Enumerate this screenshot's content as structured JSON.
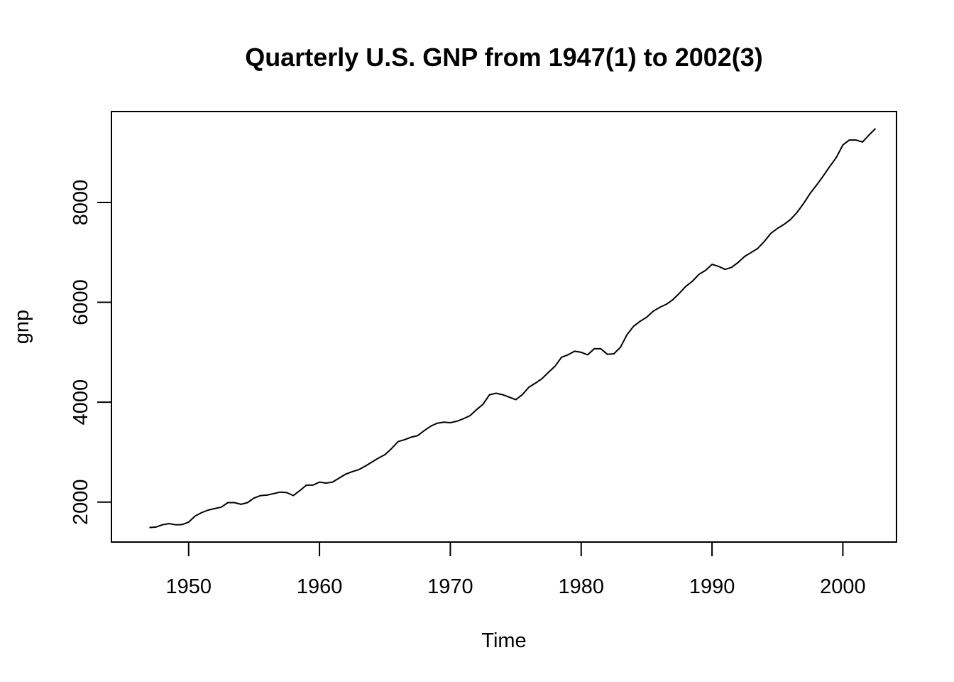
{
  "chart_data": {
    "type": "line",
    "title": "Quarterly U.S. GNP from 1947(1) to 2002(3)",
    "xlabel": "Time",
    "ylabel": "gnp",
    "xlim": [
      1944.1,
      2004.1
    ],
    "ylim": [
      1200,
      9820
    ],
    "x_ticks": [
      1950,
      1960,
      1970,
      1980,
      1990,
      2000
    ],
    "x_tick_labels": [
      "1950",
      "1960",
      "1970",
      "1980",
      "1990",
      "2000"
    ],
    "y_ticks": [
      2000,
      4000,
      6000,
      8000
    ],
    "y_tick_labels": [
      "2000",
      "4000",
      "6000",
      "8000"
    ],
    "grid": false,
    "legend": "none",
    "line_color": "#000000",
    "series": [
      {
        "x": [
          1947.0,
          1947.5,
          1948.0,
          1948.5,
          1949.0,
          1949.5,
          1950.0,
          1950.5,
          1951.0,
          1951.5,
          1952.0,
          1952.5,
          1953.0,
          1953.5,
          1954.0,
          1954.5,
          1955.0,
          1955.5,
          1956.0,
          1956.5,
          1957.0,
          1957.5,
          1958.0,
          1958.5,
          1959.0,
          1959.5,
          1960.0,
          1960.5,
          1961.0,
          1961.5,
          1962.0,
          1962.5,
          1963.0,
          1963.5,
          1964.0,
          1964.5,
          1965.0,
          1965.5,
          1966.0,
          1966.5,
          1967.0,
          1967.5,
          1968.0,
          1968.5,
          1969.0,
          1969.5,
          1970.0,
          1970.5,
          1971.0,
          1971.5,
          1972.0,
          1972.5,
          1973.0,
          1973.5,
          1974.0,
          1974.5,
          1975.0,
          1975.5,
          1976.0,
          1976.5,
          1977.0,
          1977.5,
          1978.0,
          1978.5,
          1979.0,
          1979.5,
          1980.0,
          1980.5,
          1981.0,
          1981.5,
          1982.0,
          1982.5,
          1983.0,
          1983.5,
          1984.0,
          1984.5,
          1985.0,
          1985.5,
          1986.0,
          1986.5,
          1987.0,
          1987.5,
          1988.0,
          1988.5,
          1989.0,
          1989.5,
          1990.0,
          1990.5,
          1991.0,
          1991.5,
          1992.0,
          1992.5,
          1993.0,
          1993.5,
          1994.0,
          1994.5,
          1995.0,
          1995.5,
          1996.0,
          1996.5,
          1997.0,
          1997.5,
          1998.0,
          1998.5,
          1999.0,
          1999.5,
          2000.0,
          2000.5,
          2001.0,
          2001.5,
          2002.0,
          2002.5
        ],
        "values": [
          1490,
          1500,
          1545,
          1570,
          1545,
          1550,
          1600,
          1720,
          1790,
          1840,
          1870,
          1900,
          1990,
          1990,
          1955,
          1990,
          2080,
          2130,
          2140,
          2170,
          2200,
          2190,
          2130,
          2230,
          2340,
          2340,
          2400,
          2380,
          2400,
          2480,
          2560,
          2610,
          2650,
          2720,
          2800,
          2880,
          2950,
          3070,
          3210,
          3250,
          3300,
          3330,
          3430,
          3520,
          3580,
          3600,
          3590,
          3620,
          3670,
          3730,
          3850,
          3960,
          4150,
          4180,
          4150,
          4100,
          4050,
          4150,
          4300,
          4380,
          4470,
          4600,
          4720,
          4900,
          4950,
          5020,
          5000,
          4950,
          5070,
          5070,
          4960,
          4970,
          5100,
          5350,
          5520,
          5620,
          5700,
          5820,
          5900,
          5960,
          6050,
          6180,
          6320,
          6420,
          6560,
          6640,
          6760,
          6720,
          6660,
          6700,
          6800,
          6920,
          7000,
          7080,
          7220,
          7380,
          7480,
          7560,
          7660,
          7800,
          7980,
          8180,
          8350,
          8530,
          8720,
          8900,
          9150,
          9250,
          9250,
          9210,
          9350,
          9480
        ]
      }
    ]
  }
}
